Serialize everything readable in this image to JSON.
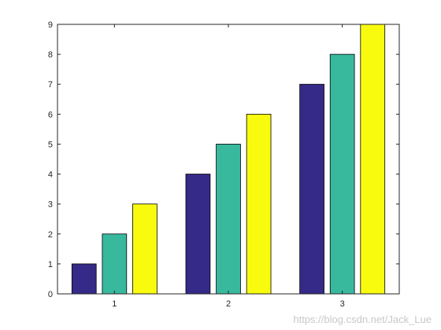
{
  "chart_data": {
    "type": "bar",
    "categories": [
      "1",
      "2",
      "3"
    ],
    "series": [
      {
        "values": [
          1,
          4,
          7
        ],
        "color": "#352a87"
      },
      {
        "values": [
          2,
          5,
          8
        ],
        "color": "#38b99e"
      },
      {
        "values": [
          3,
          6,
          9
        ],
        "color": "#f9fb0e"
      }
    ],
    "yticks": [
      "0",
      "1",
      "2",
      "3",
      "4",
      "5",
      "6",
      "7",
      "8",
      "9"
    ],
    "ylim": [
      0,
      9
    ],
    "title": "",
    "xlabel": "",
    "ylabel": "",
    "grid": false,
    "legend": "none"
  },
  "watermark": "https://blog.csdn.net/Jack_Lue"
}
